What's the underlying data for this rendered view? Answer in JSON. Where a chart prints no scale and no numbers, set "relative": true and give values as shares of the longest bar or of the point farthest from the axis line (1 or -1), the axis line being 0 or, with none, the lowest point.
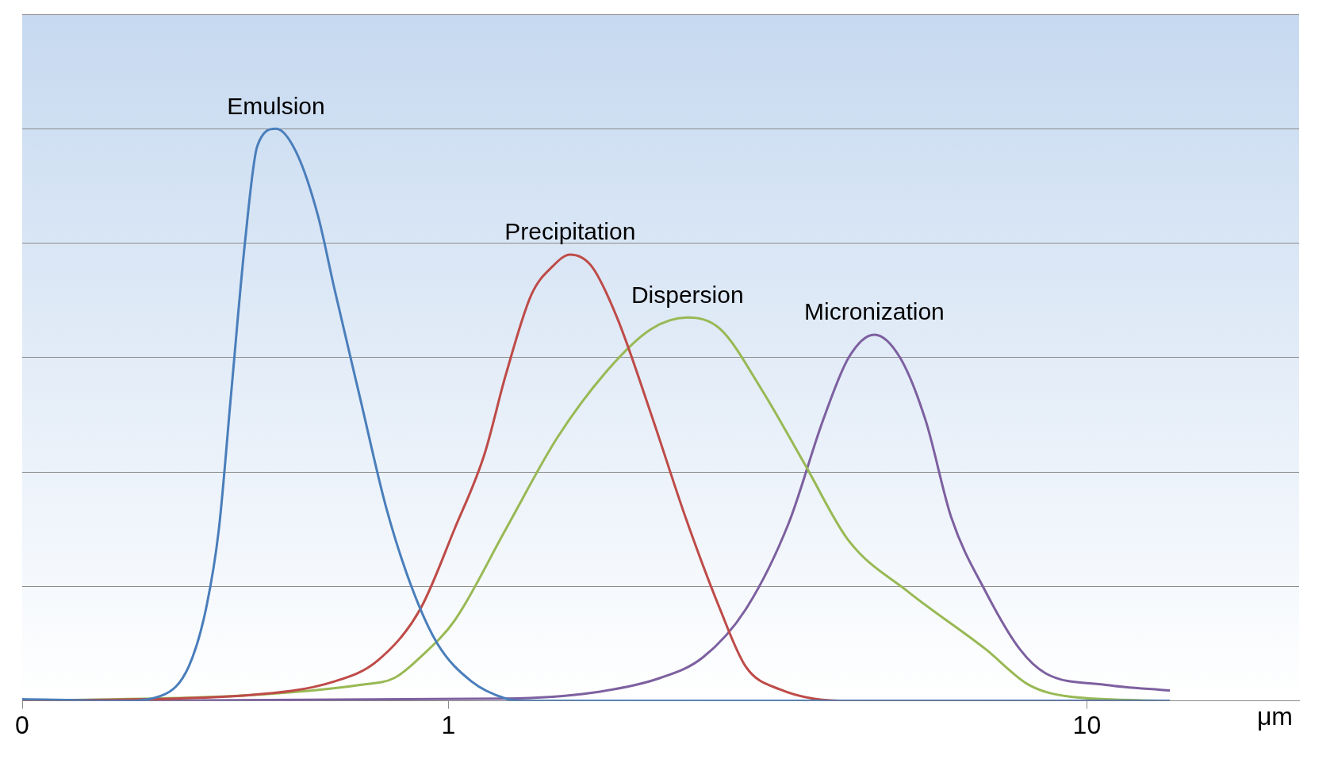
{
  "chart_data": {
    "type": "line",
    "relative": true,
    "xlabel": "μm",
    "log": "x",
    "xlim": [
      0.215,
      21.5
    ],
    "xticks": [
      {
        "value": 0.215,
        "label": "0"
      },
      1,
      10
    ],
    "grid": "y",
    "legend": false,
    "marker": "none",
    "line_style": "solid",
    "series": [
      {
        "name": "Emulsion",
        "color": "#4a7ebb",
        "x": [
          0.215,
          0.306,
          0.357,
          0.392,
          0.417,
          0.437,
          0.457,
          0.48,
          0.502,
          0.537,
          0.577,
          0.624,
          0.663,
          0.727,
          0.798,
          0.875,
          0.961,
          1.087,
          1.23,
          1.309,
          13.49
        ],
        "values": [
          0.003,
          0,
          0.01,
          0.06,
          0.16,
          0.3,
          0.54,
          0.8,
          0.97,
          1,
          0.96,
          0.85,
          0.72,
          0.53,
          0.34,
          0.2,
          0.1,
          0.034,
          0.004,
          0,
          0
        ]
      },
      {
        "name": "Precipitation",
        "color": "#be4b48",
        "x": [
          0.215,
          0.486,
          0.663,
          0.774,
          0.903,
          1.022,
          1.138,
          1.23,
          1.349,
          1.458,
          1.551,
          1.675,
          1.837,
          2.079,
          2.353,
          2.664,
          2.922,
          3.306,
          4.236,
          13.49
        ],
        "values": [
          0,
          0.01,
          0.034,
          0.07,
          0.16,
          0.3,
          0.43,
          0.57,
          0.71,
          0.76,
          0.78,
          0.76,
          0.67,
          0.5,
          0.32,
          0.16,
          0.06,
          0.02,
          0,
          0
        ]
      },
      {
        "name": "Dispersion",
        "color": "#98b954",
        "x": [
          0.215,
          0.486,
          0.727,
          0.823,
          0.903,
          1.022,
          1.23,
          1.481,
          1.782,
          2.079,
          2.368,
          2.664,
          3.11,
          3.63,
          4.236,
          5.259,
          6.947,
          8.108,
          9.46,
          13.49
        ],
        "values": [
          0,
          0.01,
          0.028,
          0.04,
          0.076,
          0.14,
          0.3,
          0.46,
          0.58,
          0.65,
          0.67,
          0.65,
          0.54,
          0.41,
          0.28,
          0.19,
          0.09,
          0.028,
          0.007,
          0
        ]
      },
      {
        "name": "Micronization",
        "color": "#7d60a0",
        "x": [
          0.215,
          1.23,
          1.675,
          2.146,
          2.504,
          2.922,
          3.41,
          3.86,
          4.236,
          4.646,
          5.097,
          5.591,
          6.135,
          6.947,
          7.856,
          8.621,
          10.71,
          13.49
        ],
        "values": [
          0,
          0.004,
          0.014,
          0.04,
          0.076,
          0.16,
          0.31,
          0.49,
          0.6,
          0.64,
          0.6,
          0.49,
          0.32,
          0.19,
          0.09,
          0.048,
          0.028,
          0.018
        ]
      }
    ]
  }
}
